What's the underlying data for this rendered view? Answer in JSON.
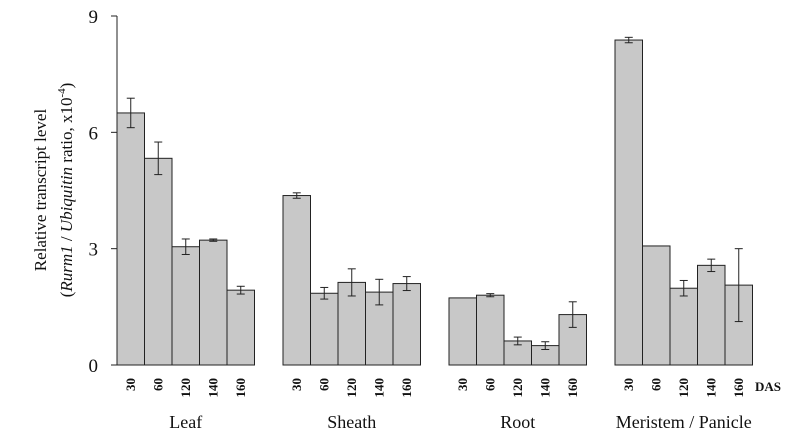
{
  "chart_data": {
    "type": "bar",
    "ylabel_line1": "Relative transcript level",
    "ylabel_line2_parts": [
      "(",
      "Rurm1",
      " / ",
      "Ubiquitin",
      " ratio, x10",
      "-4",
      ")"
    ],
    "ylim": [
      0,
      9
    ],
    "yticks": [
      "0",
      "3",
      "6",
      "9"
    ],
    "x_unit_label": "DAS",
    "bar_color": "#c8c8c8",
    "groups": [
      {
        "name": "Leaf",
        "categories": [
          "30",
          "60",
          "120",
          "140",
          "160"
        ],
        "values": [
          6.5,
          5.33,
          3.05,
          3.22,
          1.93
        ],
        "errors": [
          0.38,
          0.42,
          0.2,
          0.03,
          0.1
        ]
      },
      {
        "name": "Sheath",
        "categories": [
          "30",
          "60",
          "120",
          "140",
          "160"
        ],
        "values": [
          4.37,
          1.85,
          2.13,
          1.88,
          2.1
        ],
        "errors": [
          0.07,
          0.15,
          0.35,
          0.33,
          0.18
        ]
      },
      {
        "name": "Root",
        "categories": [
          "30",
          "60",
          "120",
          "140",
          "160"
        ],
        "values": [
          1.73,
          1.8,
          0.62,
          0.5,
          1.3
        ],
        "errors": [
          0,
          0.04,
          0.1,
          0.1,
          0.33
        ]
      },
      {
        "name": "Meristem / Panicle",
        "categories": [
          "30",
          "60",
          "120",
          "140",
          "160"
        ],
        "values": [
          8.38,
          3.07,
          1.98,
          2.57,
          2.06
        ],
        "errors": [
          0.07,
          0,
          0.2,
          0.16,
          0.94
        ]
      }
    ]
  }
}
